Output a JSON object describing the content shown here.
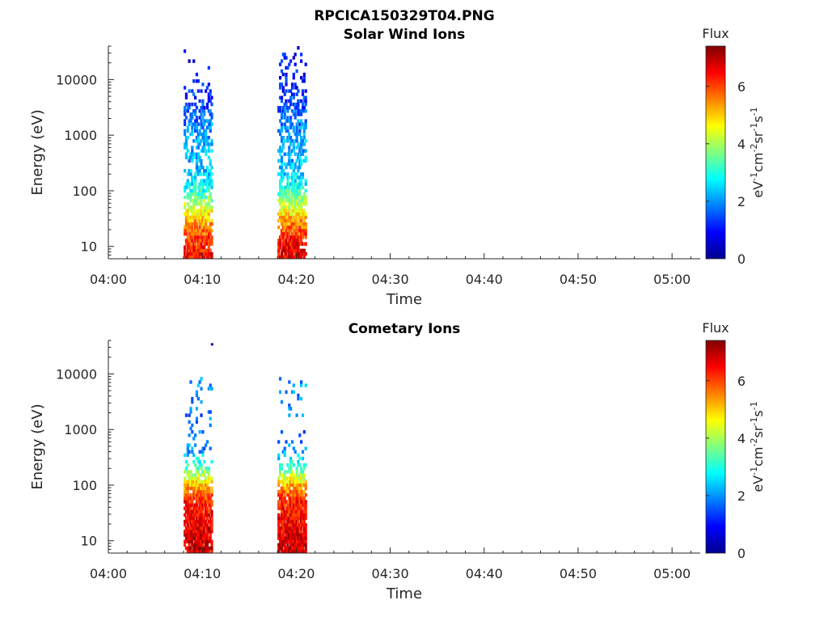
{
  "figure": {
    "title": "RPCICA150329T04.PNG"
  },
  "colorscale": {
    "stops": [
      "#00008f",
      "#0000ff",
      "#0080ff",
      "#00ffff",
      "#80ff80",
      "#ffff00",
      "#ff8000",
      "#ff0000",
      "#800000"
    ],
    "label": "Flux",
    "unit_parts": [
      "eV",
      "-1",
      "cm",
      "-2",
      "sr",
      "-1",
      "s",
      "-1"
    ],
    "ticks": [
      "0",
      "2",
      "4",
      "6"
    ],
    "range": [
      0,
      7.4
    ]
  },
  "chart_data": [
    {
      "type": "heatmap",
      "title": "Solar Wind Ions",
      "xlabel": "Time",
      "ylabel": "Energy (eV)",
      "xscale": "time (minutes after 04:00)",
      "xlim": [
        "04:00",
        "05:03"
      ],
      "xticks": [
        "04:00",
        "04:10",
        "04:20",
        "04:30",
        "04:40",
        "04:50",
        "05:00"
      ],
      "yscale": "log",
      "ylim": [
        6,
        40000
      ],
      "yticks": [
        "10",
        "100",
        "1000",
        "10000"
      ],
      "clim": [
        0,
        7.4
      ],
      "bursts": [
        {
          "start": "04:08",
          "end": "04:11",
          "center": "04:09.5",
          "profile": [
            {
              "energy": 8,
              "flux": 6.3
            },
            {
              "energy": 15,
              "flux": 6.0
            },
            {
              "energy": 30,
              "flux": 5.2
            },
            {
              "energy": 60,
              "flux": 4.0
            },
            {
              "energy": 120,
              "flux": 2.8
            },
            {
              "energy": 300,
              "flux": 2.2
            },
            {
              "energy": 800,
              "flux": 2.2
            },
            {
              "energy": 2000,
              "flux": 1.7
            },
            {
              "energy": 6000,
              "flux": 1.2
            },
            {
              "energy": 15000,
              "flux": 0.9
            }
          ],
          "density": [
            {
              "energy": 8,
              "value": 0.95
            },
            {
              "energy": 100,
              "value": 0.7
            },
            {
              "energy": 300,
              "value": 0.35
            },
            {
              "energy": 1500,
              "value": 0.6
            },
            {
              "energy": 5000,
              "value": 0.25
            },
            {
              "energy": 15000,
              "value": 0.08
            }
          ]
        },
        {
          "start": "04:18",
          "end": "04:21",
          "center": "04:19.5",
          "profile": [
            {
              "energy": 8,
              "flux": 6.6
            },
            {
              "energy": 15,
              "flux": 6.2
            },
            {
              "energy": 30,
              "flux": 5.3
            },
            {
              "energy": 60,
              "flux": 4.0
            },
            {
              "energy": 120,
              "flux": 2.8
            },
            {
              "energy": 300,
              "flux": 2.2
            },
            {
              "energy": 800,
              "flux": 2.2
            },
            {
              "energy": 2000,
              "flux": 1.7
            },
            {
              "energy": 6000,
              "flux": 1.1
            },
            {
              "energy": 30000,
              "flux": 0.9
            }
          ],
          "density": [
            {
              "energy": 8,
              "value": 0.95
            },
            {
              "energy": 100,
              "value": 0.7
            },
            {
              "energy": 300,
              "value": 0.35
            },
            {
              "energy": 1500,
              "value": 0.65
            },
            {
              "energy": 6000,
              "value": 0.4
            },
            {
              "energy": 20000,
              "value": 0.1
            }
          ]
        }
      ]
    },
    {
      "type": "heatmap",
      "title": "Cometary Ions",
      "xlabel": "Time",
      "ylabel": "Energy (eV)",
      "xscale": "time (minutes after 04:00)",
      "xlim": [
        "04:00",
        "05:03"
      ],
      "xticks": [
        "04:00",
        "04:10",
        "04:20",
        "04:30",
        "04:40",
        "04:50",
        "05:00"
      ],
      "yscale": "log",
      "ylim": [
        6,
        40000
      ],
      "yticks": [
        "10",
        "100",
        "1000",
        "10000"
      ],
      "clim": [
        0,
        7.4
      ],
      "bursts": [
        {
          "start": "04:08",
          "end": "04:11",
          "center": "04:09.5",
          "profile": [
            {
              "energy": 8,
              "flux": 6.8
            },
            {
              "energy": 20,
              "flux": 6.6
            },
            {
              "energy": 50,
              "flux": 6.3
            },
            {
              "energy": 100,
              "flux": 5.2
            },
            {
              "energy": 200,
              "flux": 3.3
            },
            {
              "energy": 500,
              "flux": 1.8
            },
            {
              "energy": 2000,
              "flux": 1.8
            },
            {
              "energy": 6000,
              "flux": 2.0
            }
          ],
          "density": [
            {
              "energy": 8,
              "value": 1.0
            },
            {
              "energy": 80,
              "value": 0.95
            },
            {
              "energy": 250,
              "value": 0.3
            },
            {
              "energy": 700,
              "value": 0.04
            },
            {
              "energy": 3000,
              "value": 0.12
            },
            {
              "energy": 7000,
              "value": 0.1
            },
            {
              "energy": 12000,
              "value": 0.0
            }
          ]
        },
        {
          "start": "04:18",
          "end": "04:21",
          "center": "04:19.5",
          "profile": [
            {
              "energy": 8,
              "flux": 6.9
            },
            {
              "energy": 20,
              "flux": 6.6
            },
            {
              "energy": 50,
              "flux": 6.3
            },
            {
              "energy": 100,
              "flux": 5.2
            },
            {
              "energy": 200,
              "flux": 3.3
            },
            {
              "energy": 500,
              "flux": 1.8
            },
            {
              "energy": 2000,
              "flux": 1.8
            },
            {
              "energy": 6000,
              "flux": 2.0
            }
          ],
          "density": [
            {
              "energy": 8,
              "value": 1.0
            },
            {
              "energy": 80,
              "value": 0.95
            },
            {
              "energy": 250,
              "value": 0.3
            },
            {
              "energy": 700,
              "value": 0.04
            },
            {
              "energy": 3000,
              "value": 0.1
            },
            {
              "energy": 6000,
              "value": 0.1
            },
            {
              "energy": 10000,
              "value": 0.0
            }
          ]
        }
      ],
      "outliers": [
        {
          "time": "04:11",
          "energy": 34000,
          "flux": 0.3
        }
      ]
    }
  ]
}
